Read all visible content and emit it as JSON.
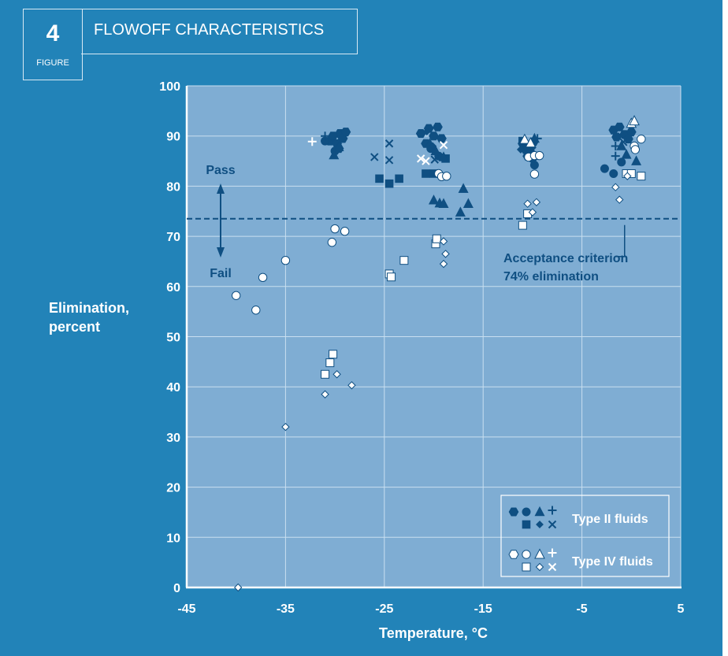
{
  "figure": {
    "number": "4",
    "label": "FIGURE",
    "title": "FLOWOFF CHARACTERISTICS"
  },
  "colors": {
    "panel": "#2283b8",
    "plot": "#7fadd3",
    "type2": "#0f4f82",
    "type4": "#ffffff",
    "text": "#ffffff",
    "dark_text": "#0f4f82"
  },
  "chart_data": {
    "type": "scatter",
    "xlabel": "Temperature, °C",
    "ylabel": "Elimination, percent",
    "xlim": [
      -45,
      5
    ],
    "ylim": [
      0,
      100
    ],
    "xticks": [
      "-45",
      "-35",
      "-25",
      "-15",
      "-5",
      "5"
    ],
    "yticks": [
      "0",
      "10",
      "20",
      "30",
      "40",
      "50",
      "60",
      "70",
      "80",
      "90",
      "100"
    ],
    "grid": true,
    "pass_label": "Pass",
    "fail_label": "Fail",
    "criterion": {
      "y": 73.5,
      "label_line1": "Acceptance criterion",
      "label_line2": "74% elimination"
    },
    "legend": {
      "placement": "bottom-right",
      "entries": [
        "Type II fluids",
        "Type IV fluids"
      ]
    },
    "series": [
      {
        "name": "Type II fluids",
        "group": "type2",
        "marker": "hexagon",
        "points": [
          [
            -30.5,
            89
          ],
          [
            -29.8,
            88.5
          ],
          [
            -29.5,
            90.5
          ],
          [
            -29.2,
            89.5
          ],
          [
            -28.9,
            90.8
          ],
          [
            -29.6,
            87.5
          ],
          [
            -30.2,
            90
          ],
          [
            -21.3,
            90.5
          ],
          [
            -20.5,
            91.5
          ],
          [
            -20,
            90
          ],
          [
            -19.6,
            91.8
          ],
          [
            -19.2,
            89.5
          ],
          [
            -20.8,
            88.5
          ],
          [
            -11,
            88.5
          ],
          [
            -10.7,
            87.3
          ],
          [
            -10.2,
            86.8
          ],
          [
            -9.9,
            88.8
          ],
          [
            -10.5,
            86
          ],
          [
            -1.8,
            91.2
          ],
          [
            -1.2,
            91.8
          ],
          [
            -0.7,
            90.3
          ],
          [
            0,
            90.8
          ],
          [
            -0.3,
            89.4
          ],
          [
            -1.5,
            89.8
          ]
        ]
      },
      {
        "name": "Type II fluids",
        "group": "type2",
        "marker": "circle",
        "points": [
          [
            -31,
            89
          ],
          [
            -30,
            87
          ],
          [
            -20.3,
            87.5
          ],
          [
            -19.5,
            86
          ],
          [
            -10.5,
            87.6
          ],
          [
            -9.8,
            84.2
          ],
          [
            -10,
            85.5
          ],
          [
            -2.7,
            83.5
          ],
          [
            -1.8,
            82.5
          ],
          [
            -1,
            84.8
          ]
        ]
      },
      {
        "name": "Type II fluids",
        "group": "type2",
        "marker": "square",
        "points": [
          [
            -25.5,
            81.5
          ],
          [
            -24.5,
            80.5
          ],
          [
            -23.5,
            81.5
          ],
          [
            -20.8,
            82.5
          ],
          [
            -20,
            82.5
          ],
          [
            -18.8,
            85.5
          ],
          [
            -11,
            89
          ],
          [
            -10.4,
            86.2
          ]
        ]
      },
      {
        "name": "Type II fluids",
        "group": "type2",
        "marker": "triangle",
        "points": [
          [
            -30.1,
            86.2
          ],
          [
            -29.6,
            87.8
          ],
          [
            -20.4,
            88.5
          ],
          [
            -19.8,
            87
          ],
          [
            -19,
            85.8
          ],
          [
            -20,
            77.2
          ],
          [
            -19.4,
            76.6
          ],
          [
            -19,
            76.5
          ],
          [
            -17.3,
            74.8
          ],
          [
            -17,
            79.5
          ],
          [
            -16.5,
            76.5
          ],
          [
            -9.8,
            89.5
          ],
          [
            -1,
            88
          ],
          [
            -0.5,
            86.3
          ],
          [
            0.5,
            85
          ]
        ]
      },
      {
        "name": "Type II fluids",
        "group": "type2",
        "marker": "diamond",
        "points": [
          [
            -20.7,
            90.9
          ],
          [
            -20.1,
            88
          ],
          [
            -11.2,
            87.3
          ],
          [
            -10,
            87.7
          ]
        ]
      },
      {
        "name": "Type II fluids",
        "group": "type2",
        "marker": "plus",
        "points": [
          [
            -31,
            90
          ],
          [
            -9.5,
            89.5
          ],
          [
            -1.6,
            88
          ],
          [
            -1.6,
            86
          ]
        ]
      },
      {
        "name": "Type II fluids",
        "group": "type2",
        "marker": "cross",
        "points": [
          [
            -26,
            85.8
          ],
          [
            -24.5,
            88.5
          ],
          [
            -24.5,
            85.2
          ],
          [
            -19.9,
            85.3
          ],
          [
            -9.8,
            86
          ],
          [
            -0.8,
            88.8
          ]
        ]
      },
      {
        "name": "Type IV fluids",
        "group": "type4",
        "marker": "circle",
        "points": [
          [
            -40,
            58.2
          ],
          [
            -38,
            55.3
          ],
          [
            -37.3,
            61.8
          ],
          [
            -35,
            65.2
          ],
          [
            -30.3,
            68.8
          ],
          [
            -30,
            71.5
          ],
          [
            -29,
            71
          ],
          [
            -19.5,
            82.5
          ],
          [
            -19.2,
            81.9
          ],
          [
            -18.7,
            82
          ],
          [
            -10.4,
            85.8
          ],
          [
            -9.8,
            86.1
          ],
          [
            -9.3,
            86.1
          ],
          [
            -9.8,
            82.4
          ],
          [
            0.3,
            88
          ],
          [
            0.4,
            87.3
          ],
          [
            1,
            89.4
          ]
        ]
      },
      {
        "name": "Type IV fluids",
        "group": "type4",
        "marker": "square",
        "points": [
          [
            -24.5,
            62.5
          ],
          [
            -24.3,
            61.9
          ],
          [
            -23,
            65.2
          ],
          [
            -19.8,
            68.5
          ],
          [
            -19.7,
            69.5
          ],
          [
            -31,
            42.5
          ],
          [
            -30.5,
            44.8
          ],
          [
            -30.2,
            46.5
          ],
          [
            -11,
            72.2
          ],
          [
            -10.5,
            74.5
          ],
          [
            -0.5,
            82.5
          ],
          [
            0,
            82.5
          ],
          [
            1,
            82
          ]
        ]
      },
      {
        "name": "Type IV fluids",
        "group": "type4",
        "marker": "triangle",
        "points": [
          [
            -10.8,
            89.3
          ],
          [
            -10.2,
            88.6
          ],
          [
            0,
            92.5
          ],
          [
            0.3,
            93
          ]
        ]
      },
      {
        "name": "Type IV fluids",
        "group": "type4",
        "marker": "diamond",
        "points": [
          [
            -39.8,
            0
          ],
          [
            -35,
            32
          ],
          [
            -31,
            38.5
          ],
          [
            -29.8,
            42.5
          ],
          [
            -28.3,
            40.3
          ],
          [
            -19,
            69
          ],
          [
            -18.8,
            66.5
          ],
          [
            -19,
            64.5
          ],
          [
            -10.5,
            76.5
          ],
          [
            -10,
            74.8
          ],
          [
            -9.6,
            76.8
          ],
          [
            -1.6,
            79.8
          ],
          [
            -1.2,
            77.3
          ],
          [
            -0.4,
            82
          ]
        ]
      },
      {
        "name": "Type IV fluids",
        "group": "type4",
        "marker": "plus",
        "points": [
          [
            -32.3,
            88.9
          ]
        ]
      },
      {
        "name": "Type IV fluids",
        "group": "type4",
        "marker": "cross",
        "points": [
          [
            -21.3,
            85.5
          ],
          [
            -20.8,
            85
          ],
          [
            -19,
            88.2
          ]
        ]
      }
    ]
  }
}
